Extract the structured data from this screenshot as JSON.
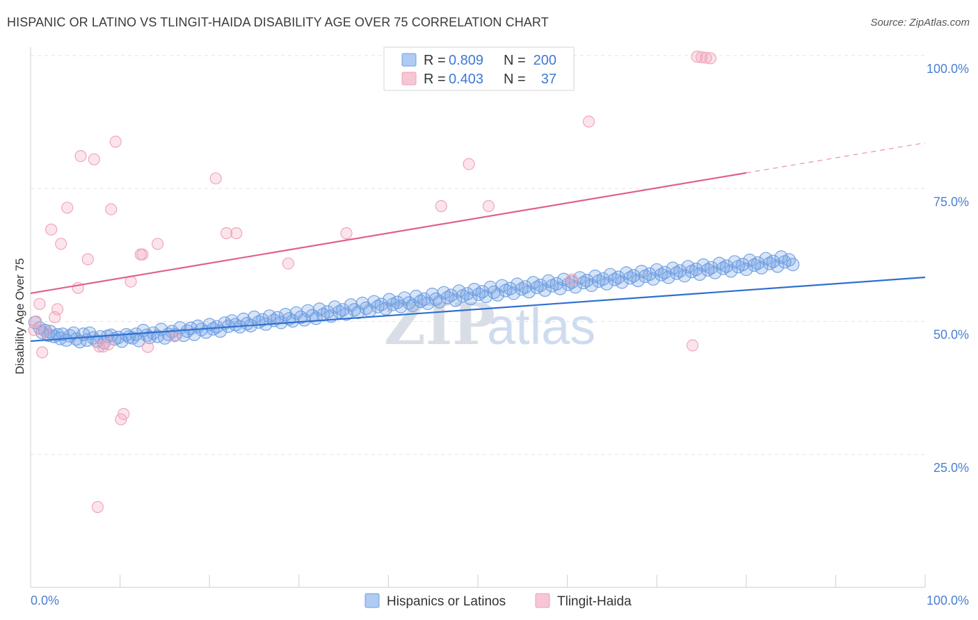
{
  "title": "HISPANIC OR LATINO VS TLINGIT-HAIDA DISABILITY AGE OVER 75 CORRELATION CHART",
  "source": "Source: ZipAtlas.com",
  "watermark": {
    "zip": "ZIP",
    "atlas": "atlas"
  },
  "chart_data": {
    "type": "scatter",
    "xlabel": "",
    "ylabel": "Disability Age Over 75",
    "xlim": [
      0,
      100
    ],
    "ylim": [
      0,
      105
    ],
    "x_tick_labels": [
      {
        "value": 0,
        "label": "0.0%"
      },
      {
        "value": 100,
        "label": "100.0%"
      }
    ],
    "y_tick_labels": [
      {
        "value": 25,
        "label": "25.0%"
      },
      {
        "value": 50,
        "label": "50.0%"
      },
      {
        "value": 75,
        "label": "75.0%"
      },
      {
        "value": 100,
        "label": "100.0%"
      }
    ],
    "grid": "horizontal dashed",
    "legend_position": "top-center",
    "series": [
      {
        "name": "Hispanics or Latinos",
        "color": "#6f9fe3",
        "line_color": "#2f6fd0",
        "r": "0.809",
        "n": "200",
        "trend": {
          "x0": 0,
          "y0": 46.3,
          "x1": 100,
          "y1": 58.3,
          "dash_from": null
        },
        "points": [
          [
            0.5,
            49.8
          ],
          [
            1,
            48.8
          ],
          [
            1.3,
            47.9
          ],
          [
            1.6,
            48.3
          ],
          [
            2,
            47.4
          ],
          [
            2.2,
            48.1
          ],
          [
            2.6,
            47.2
          ],
          [
            3,
            47.5
          ],
          [
            3.3,
            46.8
          ],
          [
            3.6,
            47.6
          ],
          [
            4,
            46.5
          ],
          [
            4.4,
            47.3
          ],
          [
            4.8,
            47.8
          ],
          [
            5.1,
            46.7
          ],
          [
            5.5,
            46.2
          ],
          [
            5.9,
            47.6
          ],
          [
            6.3,
            46.5
          ],
          [
            6.6,
            47.8
          ],
          [
            7,
            46.9
          ],
          [
            7.4,
            46.3
          ],
          [
            7.8,
            47.1
          ],
          [
            8.2,
            46.0
          ],
          [
            8.6,
            47.2
          ],
          [
            9,
            47.4
          ],
          [
            9.4,
            46.7
          ],
          [
            9.8,
            47.0
          ],
          [
            10.2,
            46.3
          ],
          [
            10.7,
            47.5
          ],
          [
            11,
            47.1
          ],
          [
            11.4,
            46.9
          ],
          [
            11.8,
            47.6
          ],
          [
            12.1,
            46.4
          ],
          [
            12.6,
            48.3
          ],
          [
            13,
            47.4
          ],
          [
            13.3,
            47.0
          ],
          [
            13.7,
            47.8
          ],
          [
            14.2,
            47.2
          ],
          [
            14.6,
            48.5
          ],
          [
            15,
            46.9
          ],
          [
            15.4,
            47.6
          ],
          [
            15.8,
            48.1
          ],
          [
            16.2,
            47.5
          ],
          [
            16.7,
            48.8
          ],
          [
            17.1,
            47.4
          ],
          [
            17.5,
            48.2
          ],
          [
            17.9,
            48.7
          ],
          [
            18.3,
            47.6
          ],
          [
            18.7,
            49.1
          ],
          [
            19.1,
            48.5
          ],
          [
            19.6,
            48.0
          ],
          [
            20,
            49.4
          ],
          [
            20.4,
            48.6
          ],
          [
            20.8,
            49.0
          ],
          [
            21.2,
            48.2
          ],
          [
            21.7,
            49.7
          ],
          [
            22.1,
            49.1
          ],
          [
            22.5,
            50.1
          ],
          [
            22.9,
            49.4
          ],
          [
            23.4,
            49.0
          ],
          [
            23.8,
            50.4
          ],
          [
            24.2,
            49.6
          ],
          [
            24.6,
            49.2
          ],
          [
            25,
            50.8
          ],
          [
            25.5,
            49.9
          ],
          [
            25.9,
            50.3
          ],
          [
            26.3,
            49.5
          ],
          [
            26.7,
            51.0
          ],
          [
            27.2,
            50.2
          ],
          [
            27.6,
            50.7
          ],
          [
            28,
            49.8
          ],
          [
            28.5,
            51.3
          ],
          [
            28.9,
            50.5
          ],
          [
            29.3,
            50.1
          ],
          [
            29.7,
            51.6
          ],
          [
            30.2,
            50.8
          ],
          [
            30.6,
            50.3
          ],
          [
            31,
            52.0
          ],
          [
            31.5,
            51.1
          ],
          [
            31.9,
            50.6
          ],
          [
            32.3,
            52.3
          ],
          [
            32.7,
            51.3
          ],
          [
            33.2,
            51.8
          ],
          [
            33.6,
            51.0
          ],
          [
            34,
            52.7
          ],
          [
            34.5,
            51.8
          ],
          [
            34.9,
            52.2
          ],
          [
            35.3,
            51.4
          ],
          [
            35.8,
            53.1
          ],
          [
            36.2,
            52.2
          ],
          [
            36.6,
            51.7
          ],
          [
            37.1,
            53.4
          ],
          [
            37.5,
            52.5
          ],
          [
            37.9,
            52.0
          ],
          [
            38.4,
            53.7
          ],
          [
            38.8,
            52.8
          ],
          [
            39.2,
            53.2
          ],
          [
            39.7,
            52.4
          ],
          [
            40.1,
            54.1
          ],
          [
            40.5,
            53.2
          ],
          [
            41,
            53.6
          ],
          [
            41.4,
            52.8
          ],
          [
            41.8,
            54.4
          ],
          [
            42.3,
            53.5
          ],
          [
            42.7,
            53.0
          ],
          [
            43.1,
            54.7
          ],
          [
            43.6,
            53.8
          ],
          [
            44,
            54.2
          ],
          [
            44.4,
            53.4
          ],
          [
            44.9,
            55.1
          ],
          [
            45.3,
            54.2
          ],
          [
            45.7,
            53.7
          ],
          [
            46.2,
            55.4
          ],
          [
            46.6,
            54.5
          ],
          [
            47,
            54.9
          ],
          [
            47.5,
            54.0
          ],
          [
            47.9,
            55.7
          ],
          [
            48.3,
            54.8
          ],
          [
            48.8,
            55.2
          ],
          [
            49.2,
            54.3
          ],
          [
            49.6,
            56.0
          ],
          [
            50.1,
            55.1
          ],
          [
            50.5,
            55.6
          ],
          [
            50.9,
            54.7
          ],
          [
            51.4,
            56.4
          ],
          [
            51.8,
            55.5
          ],
          [
            52.2,
            55.0
          ],
          [
            52.7,
            56.7
          ],
          [
            53.1,
            55.8
          ],
          [
            53.6,
            56.2
          ],
          [
            54,
            55.3
          ],
          [
            54.4,
            57.0
          ],
          [
            54.9,
            56.1
          ],
          [
            55.3,
            56.5
          ],
          [
            55.7,
            55.6
          ],
          [
            56.2,
            57.3
          ],
          [
            56.6,
            56.4
          ],
          [
            57,
            56.8
          ],
          [
            57.5,
            55.9
          ],
          [
            57.9,
            57.6
          ],
          [
            58.3,
            56.7
          ],
          [
            58.8,
            57.1
          ],
          [
            59.2,
            56.2
          ],
          [
            59.6,
            57.9
          ],
          [
            60.1,
            57.0
          ],
          [
            60.5,
            57.4
          ],
          [
            60.9,
            56.5
          ],
          [
            61.4,
            58.2
          ],
          [
            61.8,
            57.3
          ],
          [
            62.2,
            57.7
          ],
          [
            62.7,
            56.8
          ],
          [
            63.1,
            58.5
          ],
          [
            63.5,
            57.6
          ],
          [
            64,
            58.0
          ],
          [
            64.4,
            57.1
          ],
          [
            64.8,
            58.8
          ],
          [
            65.3,
            57.9
          ],
          [
            65.7,
            58.3
          ],
          [
            66.1,
            57.4
          ],
          [
            66.6,
            59.1
          ],
          [
            67,
            58.2
          ],
          [
            67.4,
            58.6
          ],
          [
            67.9,
            57.7
          ],
          [
            68.3,
            59.4
          ],
          [
            68.7,
            58.5
          ],
          [
            69.2,
            58.9
          ],
          [
            69.6,
            58.0
          ],
          [
            70,
            59.7
          ],
          [
            70.5,
            58.8
          ],
          [
            70.9,
            59.2
          ],
          [
            71.3,
            58.3
          ],
          [
            71.8,
            60.0
          ],
          [
            72.2,
            59.1
          ],
          [
            72.6,
            59.5
          ],
          [
            73.1,
            58.6
          ],
          [
            73.5,
            60.3
          ],
          [
            73.9,
            59.4
          ],
          [
            74.4,
            59.8
          ],
          [
            74.8,
            58.9
          ],
          [
            75.2,
            60.6
          ],
          [
            75.7,
            59.7
          ],
          [
            76.1,
            60.1
          ],
          [
            76.5,
            59.2
          ],
          [
            77,
            60.9
          ],
          [
            77.4,
            60.0
          ],
          [
            77.8,
            60.4
          ],
          [
            78.3,
            59.5
          ],
          [
            78.7,
            61.2
          ],
          [
            79.1,
            60.3
          ],
          [
            79.6,
            60.7
          ],
          [
            80,
            59.8
          ],
          [
            80.4,
            61.5
          ],
          [
            80.9,
            60.6
          ],
          [
            81.3,
            61.0
          ],
          [
            81.7,
            60.1
          ],
          [
            82.2,
            61.8
          ],
          [
            82.6,
            60.9
          ],
          [
            83,
            61.3
          ],
          [
            83.5,
            60.4
          ],
          [
            83.9,
            62.1
          ],
          [
            84.3,
            61.2
          ],
          [
            84.8,
            61.6
          ],
          [
            85.2,
            60.7
          ]
        ]
      },
      {
        "name": "Tlingit-Haida",
        "color": "#f0a0b8",
        "line_color": "#e0608a",
        "r": "0.403",
        "n": "37",
        "trend": {
          "x0": 0,
          "y0": 55.3,
          "x1": 100,
          "y1": 83.6,
          "dash_from": 80
        },
        "points": [
          [
            0.4,
            48.4
          ],
          [
            0.6,
            50.0
          ],
          [
            1,
            53.3
          ],
          [
            1.3,
            44.2
          ],
          [
            1.6,
            48.2
          ],
          [
            2.3,
            67.3
          ],
          [
            2.7,
            50.8
          ],
          [
            3,
            52.3
          ],
          [
            3.4,
            64.6
          ],
          [
            4.1,
            71.4
          ],
          [
            5.3,
            56.3
          ],
          [
            5.6,
            81.1
          ],
          [
            6.4,
            61.7
          ],
          [
            7.1,
            80.5
          ],
          [
            7.7,
            45.3
          ],
          [
            8.1,
            45.3
          ],
          [
            8.7,
            45.7
          ],
          [
            9,
            71.1
          ],
          [
            9.5,
            83.8
          ],
          [
            10.1,
            31.6
          ],
          [
            10.4,
            32.6
          ],
          [
            11.2,
            57.5
          ],
          [
            12.3,
            62.6
          ],
          [
            12.5,
            62.6
          ],
          [
            13.1,
            45.2
          ],
          [
            14.2,
            64.6
          ],
          [
            16.1,
            47.2
          ],
          [
            20.7,
            76.9
          ],
          [
            21.9,
            66.6
          ],
          [
            23,
            66.6
          ],
          [
            28.8,
            60.9
          ],
          [
            35.3,
            66.6
          ],
          [
            45.9,
            71.7
          ],
          [
            49,
            79.6
          ],
          [
            51.2,
            71.7
          ],
          [
            60.5,
            57.9
          ],
          [
            62.4,
            87.6
          ],
          [
            74,
            45.5
          ],
          [
            75,
            99.7
          ],
          [
            74.5,
            99.8
          ],
          [
            75.5,
            99.6
          ],
          [
            76,
            99.5
          ],
          [
            7.5,
            15.1
          ]
        ]
      }
    ]
  },
  "legend": {
    "r_label": "R =",
    "n_label": "N =",
    "items": [
      {
        "r": "0.809",
        "n": "200"
      },
      {
        "r": "0.403",
        "n": "37"
      }
    ]
  },
  "bottom_legend": {
    "items": [
      {
        "label": "Hispanics or Latinos",
        "color": "#aecbf2",
        "border": "#6f9fe3"
      },
      {
        "label": "Tlingit-Haida",
        "color": "#f7c6d4",
        "border": "#ee9fb7"
      }
    ]
  }
}
